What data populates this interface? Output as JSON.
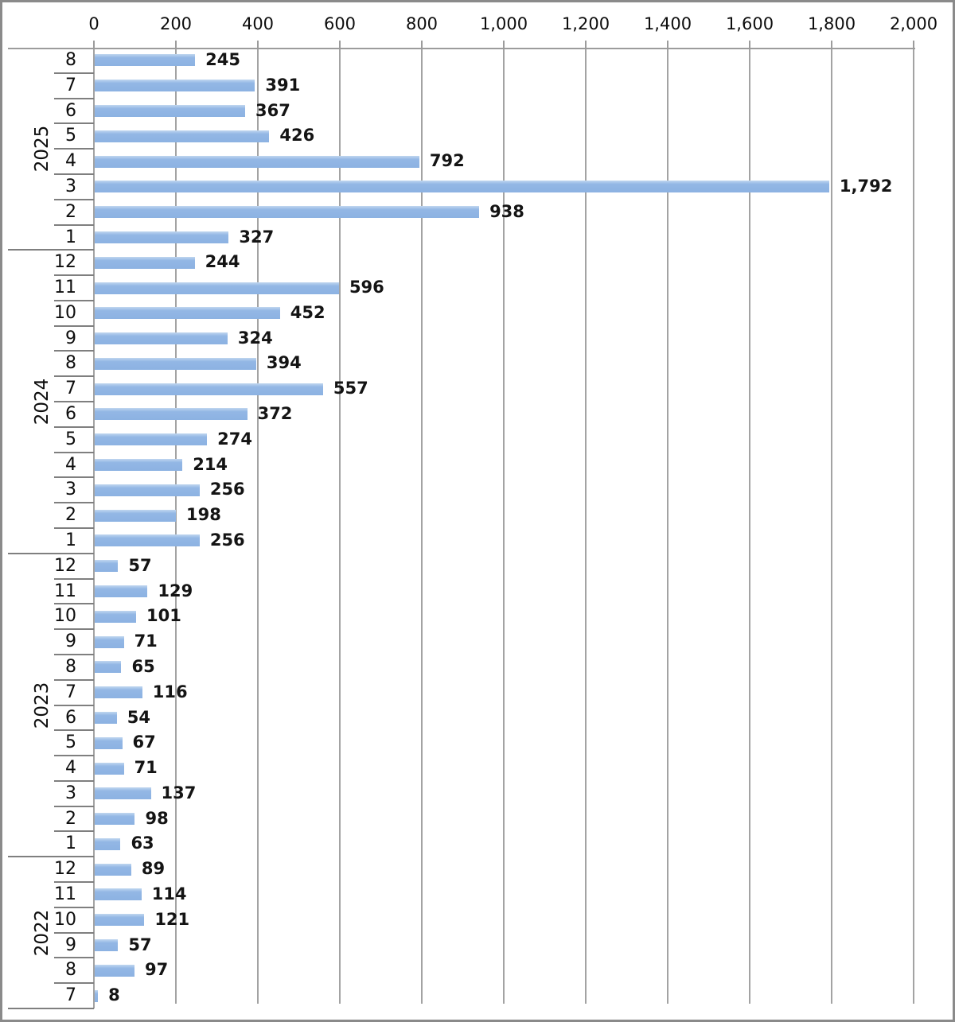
{
  "chart_data": {
    "type": "bar",
    "orientation": "horizontal",
    "title": "",
    "xlabel": "",
    "ylabel": "",
    "x_axis": {
      "position": "top",
      "min": 0,
      "max": 2000,
      "tick_step": 200,
      "ticks": [
        0,
        200,
        400,
        600,
        800,
        1000,
        1200,
        1400,
        1600,
        1800,
        2000
      ],
      "tick_labels": [
        "0",
        "200",
        "400",
        "600",
        "800",
        "1,000",
        "1,200",
        "1,400",
        "1,600",
        "1,800",
        "2,000"
      ]
    },
    "gridlines": "vertical",
    "legend": "none",
    "value_labels": "outside-end",
    "groups": [
      {
        "year": "2025",
        "months": [
          "8",
          "7",
          "6",
          "5",
          "4",
          "3",
          "2",
          "1"
        ],
        "values": [
          245,
          391,
          367,
          426,
          792,
          1792,
          938,
          327
        ]
      },
      {
        "year": "2024",
        "months": [
          "12",
          "11",
          "10",
          "9",
          "8",
          "7",
          "6",
          "5",
          "4",
          "3",
          "2",
          "1"
        ],
        "values": [
          244,
          596,
          452,
          324,
          394,
          557,
          372,
          274,
          214,
          256,
          198,
          256
        ]
      },
      {
        "year": "2023",
        "months": [
          "12",
          "11",
          "10",
          "9",
          "8",
          "7",
          "6",
          "5",
          "4",
          "3",
          "2",
          "1"
        ],
        "values": [
          57,
          129,
          101,
          71,
          65,
          116,
          54,
          67,
          71,
          137,
          98,
          63
        ]
      },
      {
        "year": "2022",
        "months": [
          "12",
          "11",
          "10",
          "9",
          "8",
          "7"
        ],
        "values": [
          89,
          114,
          121,
          57,
          97,
          8
        ]
      }
    ],
    "colors": {
      "bar": "#8FB4E3",
      "bar_highlight": "#C0D6EF",
      "grid": "#A3A3A3",
      "separator": "#7F7F7F",
      "border": "#8A8A8A",
      "text": "#0D0D0D",
      "value_text": "#141414"
    }
  }
}
